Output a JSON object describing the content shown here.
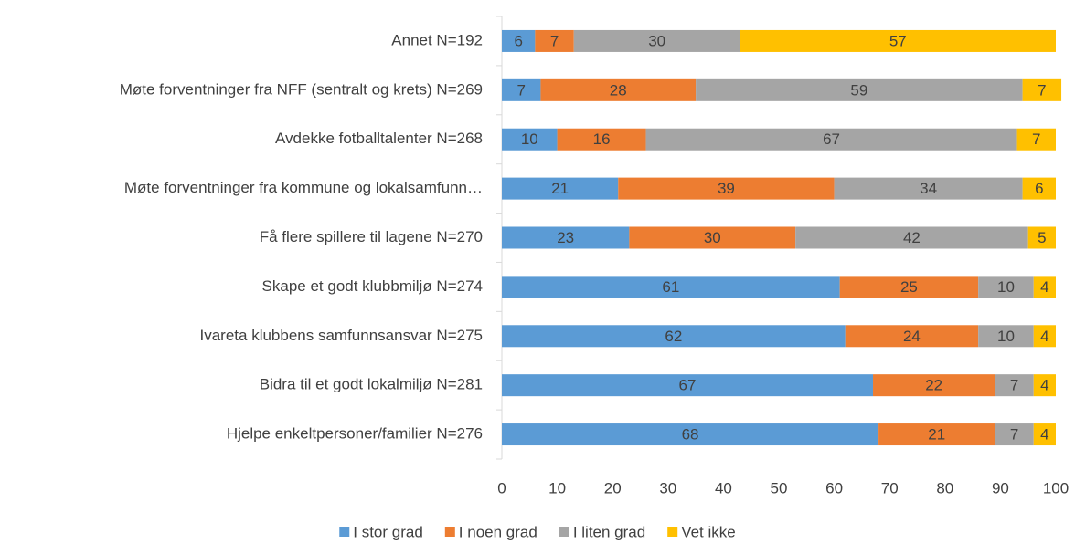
{
  "chart_data": {
    "type": "stacked_bar_horizontal",
    "categories": [
      "Annet N=192",
      "Møte forventninger fra NFF (sentralt og krets) N=269",
      "Avdekke fotballtalenter N=268",
      "Møte forventninger fra kommune og lokalsamfunn…",
      "Få flere spillere til lagene N=270",
      "Skape et godt klubbmiljø N=274",
      "Ivareta klubbens samfunnsansvar N=275",
      "Bidra til et godt lokalmiljø N=281",
      "Hjelpe enkeltpersoner/familier N=276"
    ],
    "series": [
      {
        "name": "I stor grad",
        "color": "#5b9bd5",
        "values": [
          6,
          7,
          10,
          21,
          23,
          61,
          62,
          67,
          68
        ]
      },
      {
        "name": "I noen grad",
        "color": "#ed7d31",
        "values": [
          7,
          28,
          16,
          39,
          30,
          25,
          24,
          22,
          21
        ]
      },
      {
        "name": "I liten grad",
        "color": "#a5a5a5",
        "values": [
          30,
          59,
          67,
          34,
          42,
          10,
          10,
          7,
          7
        ]
      },
      {
        "name": "Vet ikke",
        "color": "#ffc000",
        "values": [
          57,
          7,
          7,
          6,
          5,
          4,
          4,
          4,
          4
        ]
      }
    ],
    "xlim": [
      0,
      100
    ],
    "xticks": [
      0,
      10,
      20,
      30,
      40,
      50,
      60,
      70,
      80,
      90,
      100
    ],
    "legend": "bottom"
  }
}
